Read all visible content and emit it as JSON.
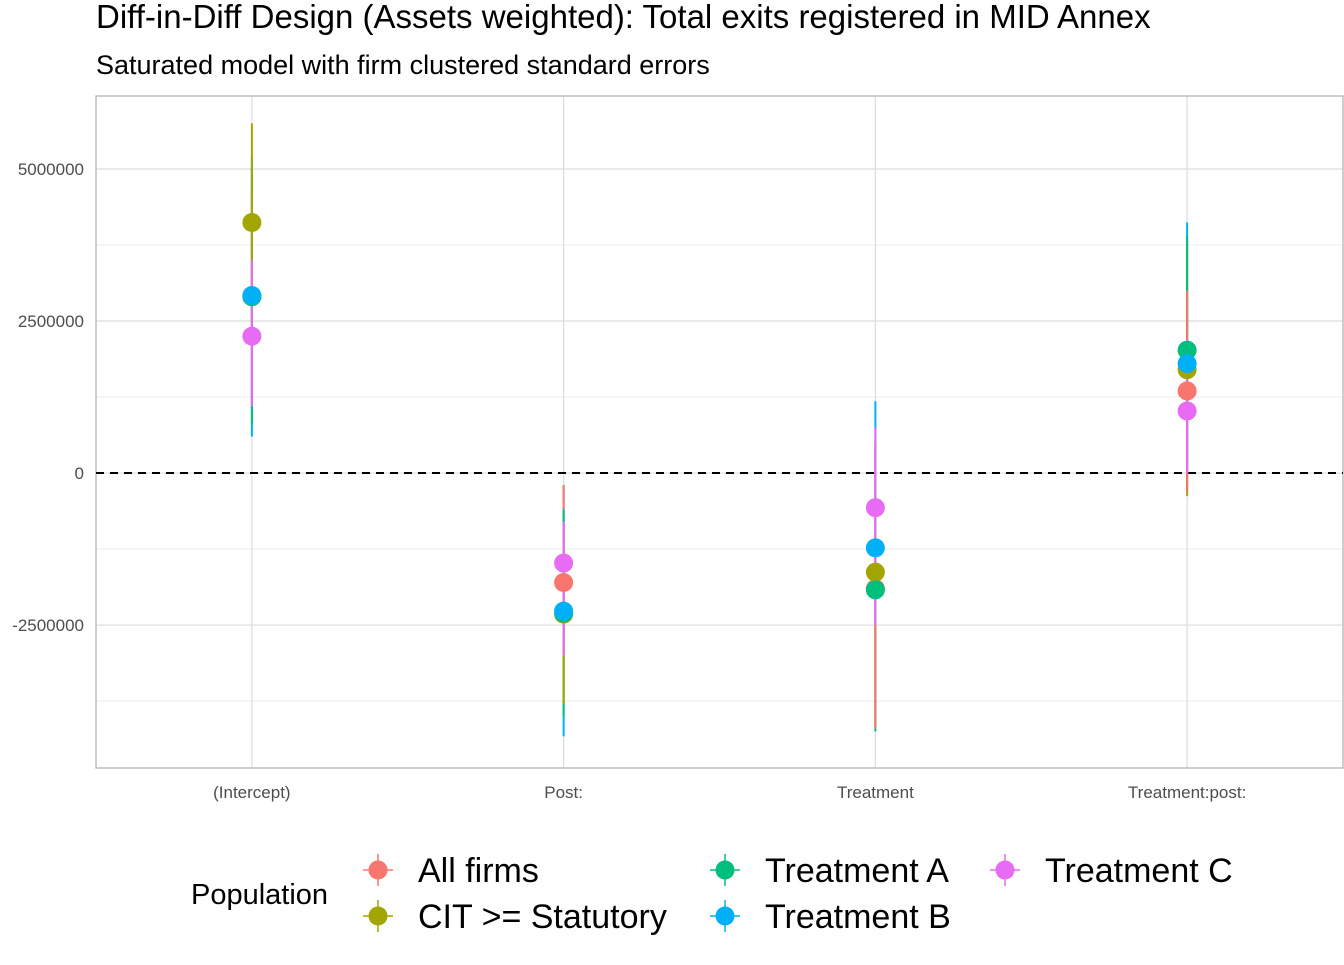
{
  "chart_data": {
    "type": "scatter",
    "title": "Diff-in-Diff Design (Assets weighted): Total exits registered in MID Annex",
    "subtitle": "Saturated model with firm clustered standard errors",
    "xlabel": "",
    "ylabel": "",
    "categories": [
      "(Intercept)",
      "Post:",
      "Treatment",
      "Treatment:post:"
    ],
    "ylim": [
      -4850000,
      6200000
    ],
    "yticks": [
      5000000,
      2500000,
      0,
      -2500000
    ],
    "ytick_labels": [
      "5000000",
      "2500000",
      "0",
      "-2500000"
    ],
    "grid": true,
    "reference_line": 0,
    "legend": {
      "title": "Population",
      "position": "bottom"
    },
    "series": [
      {
        "name": "All firms",
        "color": "#F8766D",
        "values": [
          2900000,
          -1800000,
          -1900000,
          1350000
        ],
        "lower": [
          1100000,
          -3800000,
          -4200000,
          -300000
        ],
        "upper": [
          4700000,
          -200000,
          400000,
          3000000
        ]
      },
      {
        "name": "CIT >= Statutory",
        "color": "#A3A500",
        "values": [
          4120000,
          -2320000,
          -1630000,
          1700000
        ],
        "lower": [
          2500000,
          -3800000,
          -4200000,
          -380000
        ],
        "upper": [
          5750000,
          -850000,
          500000,
          3780000
        ]
      },
      {
        "name": "Treatment A",
        "color": "#00BF7D",
        "values": [
          2900000,
          -2300000,
          -1920000,
          2020000
        ],
        "lower": [
          800000,
          -4000000,
          -4250000,
          100000
        ],
        "upper": [
          5000000,
          -600000,
          400000,
          3900000
        ]
      },
      {
        "name": "Treatment B",
        "color": "#00B0F6",
        "values": [
          2920000,
          -2270000,
          -1230000,
          1800000
        ],
        "lower": [
          600000,
          -4330000,
          -3800000,
          -300000
        ],
        "upper": [
          5200000,
          -200000,
          1180000,
          4120000
        ]
      },
      {
        "name": "Treatment C",
        "color": "#E76BF3",
        "values": [
          2250000,
          -1480000,
          -570000,
          1020000
        ],
        "lower": [
          1100000,
          -3000000,
          -2500000,
          0
        ],
        "upper": [
          3500000,
          -800000,
          750000,
          2200000
        ]
      }
    ]
  }
}
